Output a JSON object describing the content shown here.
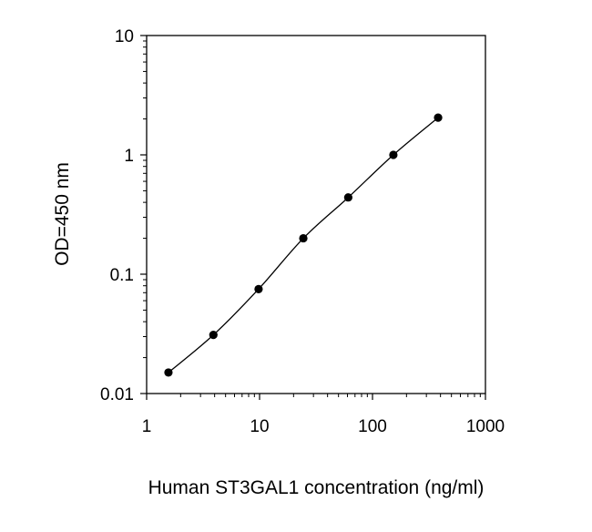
{
  "chart_data": {
    "type": "scatter",
    "title": "",
    "xlabel": "Human ST3GAL1 concentration (ng/ml)",
    "ylabel": "OD=450 nm",
    "xscale": "log",
    "yscale": "log",
    "xlim": [
      1,
      1000
    ],
    "ylim": [
      0.01,
      10
    ],
    "x_ticks": [
      1,
      10,
      100,
      1000
    ],
    "x_tick_labels": [
      "1",
      "10",
      "100",
      "1000"
    ],
    "y_ticks": [
      0.01,
      0.1,
      1,
      10
    ],
    "y_tick_labels": [
      "0.01",
      "0.1",
      "1",
      "10"
    ],
    "grid": false,
    "legend": "none",
    "series": [
      {
        "x": [
          1.56,
          3.9,
          9.8,
          24.4,
          61,
          153,
          381
        ],
        "y": [
          0.015,
          0.031,
          0.075,
          0.2,
          0.44,
          1.0,
          2.05
        ],
        "marker": "circle",
        "line": "smooth",
        "color": "#000000"
      }
    ]
  }
}
